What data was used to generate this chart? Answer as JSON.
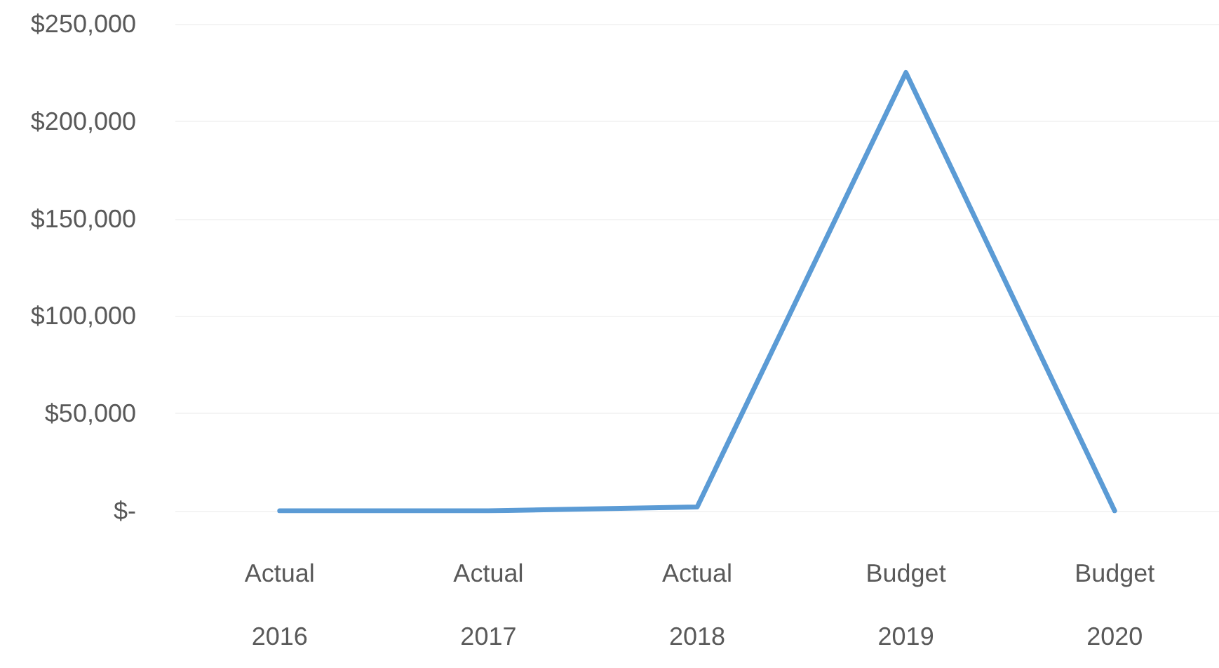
{
  "chart_data": {
    "type": "line",
    "categories": [
      "Actual\n2016",
      "Actual\n2017",
      "Actual\n2018",
      "Budget\n2019",
      "Budget\n2020"
    ],
    "series": [
      {
        "color": "#5b9bd5",
        "values": [
          0,
          0,
          2000,
          225000,
          0
        ]
      }
    ],
    "ylim": [
      0,
      250000
    ],
    "yticks": [
      {
        "value": 0,
        "label": "$-"
      },
      {
        "value": 50000,
        "label": "$50,000"
      },
      {
        "value": 100000,
        "label": "$100,000"
      },
      {
        "value": 150000,
        "label": "$150,000"
      },
      {
        "value": 200000,
        "label": "$200,000"
      },
      {
        "value": 250000,
        "label": "$250,000"
      }
    ],
    "grid": "y",
    "marker": "none",
    "line_style": "solid"
  }
}
